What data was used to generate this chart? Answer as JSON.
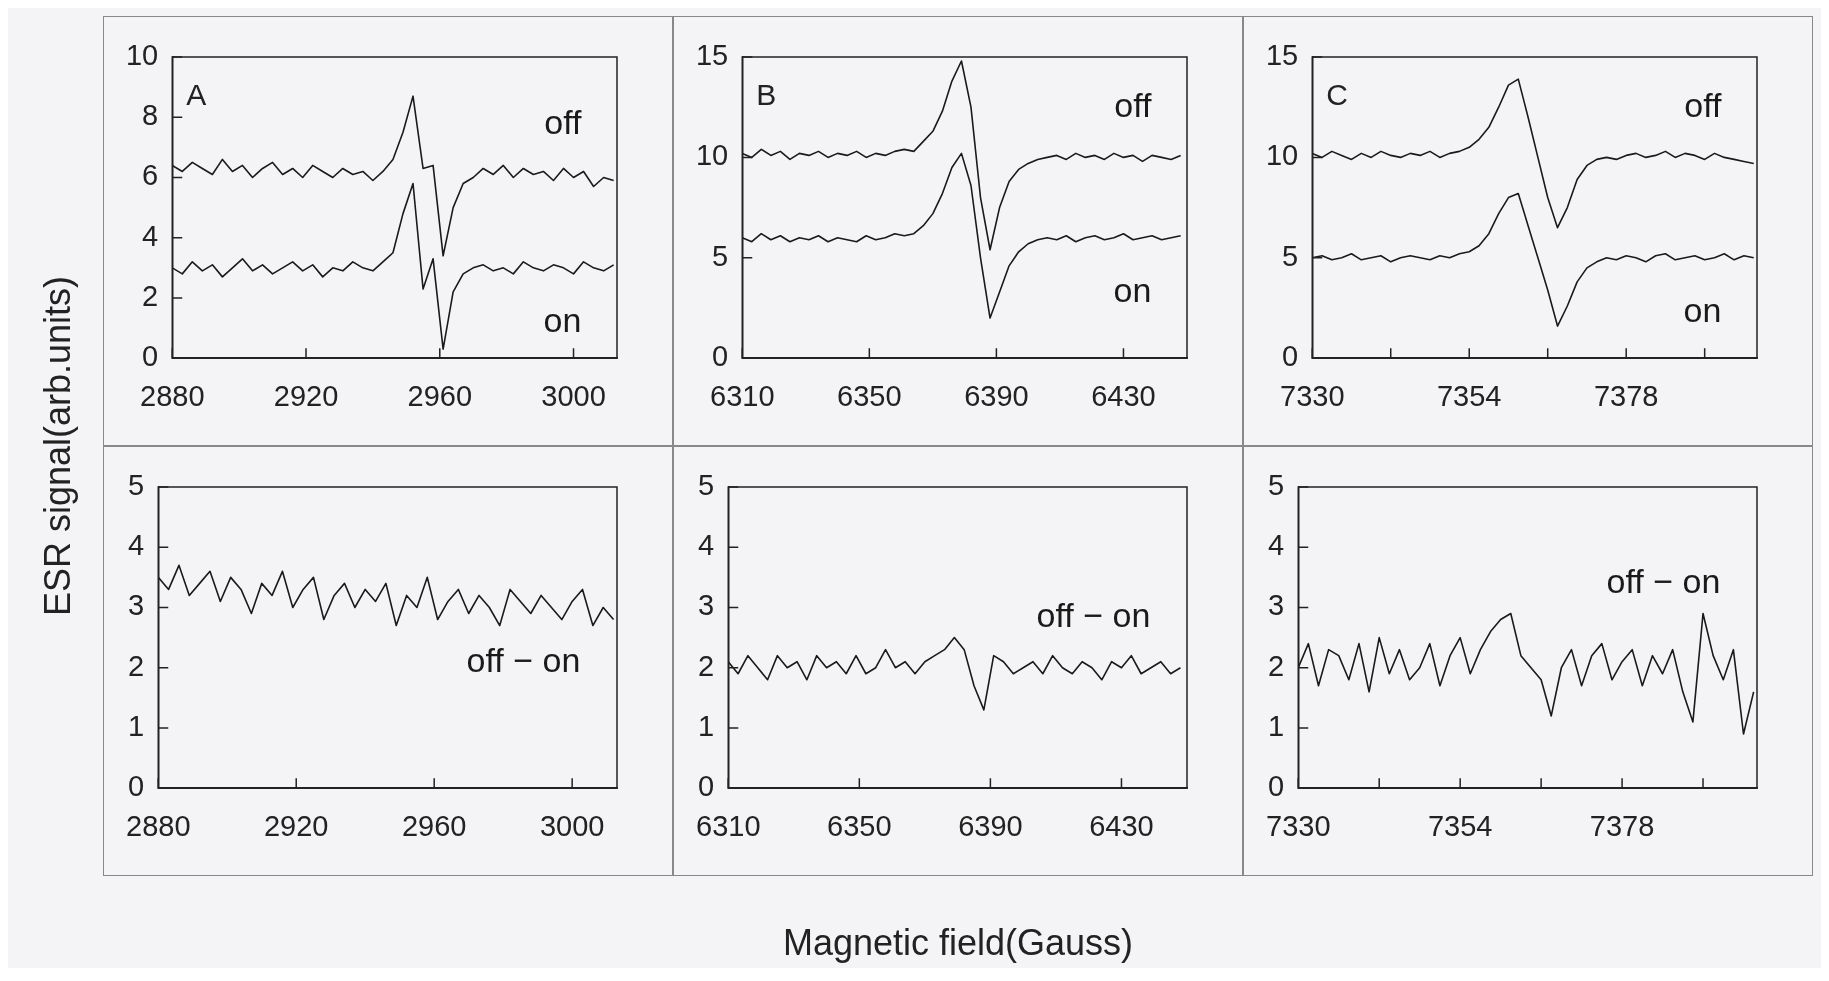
{
  "chart_data": [
    {
      "type": "line",
      "ylabel": "ESR signal(arb.units)",
      "annotations": [
        "A"
      ],
      "x": [
        2880,
        2883,
        2886,
        2889,
        2892,
        2895,
        2898,
        2901,
        2904,
        2907,
        2910,
        2913,
        2916,
        2919,
        2922,
        2925,
        2928,
        2931,
        2934,
        2937,
        2940,
        2943,
        2946,
        2949,
        2952,
        2955,
        2958,
        2961,
        2964,
        2967,
        2970,
        2973,
        2976,
        2979,
        2982,
        2985,
        2988,
        2991,
        2994,
        2997,
        3000,
        3003,
        3006,
        3009,
        3012
      ],
      "xlim": [
        2880,
        3013
      ],
      "xticks": [
        2880,
        2920,
        2960,
        3000
      ],
      "ylim": [
        0,
        10
      ],
      "yticks": [
        0,
        2,
        4,
        6,
        8,
        10
      ],
      "series": [
        {
          "name": "off",
          "color": "#1a1a1a",
          "values": [
            6.4,
            6.2,
            6.5,
            6.3,
            6.1,
            6.6,
            6.2,
            6.4,
            6.0,
            6.3,
            6.5,
            6.1,
            6.3,
            6.0,
            6.4,
            6.2,
            6.0,
            6.3,
            6.1,
            6.2,
            5.9,
            6.2,
            6.6,
            7.5,
            8.7,
            6.3,
            6.4,
            3.4,
            5.0,
            5.8,
            6.0,
            6.3,
            6.1,
            6.4,
            6.0,
            6.3,
            6.1,
            6.2,
            5.9,
            6.3,
            6.0,
            6.2,
            5.7,
            6.0,
            5.9
          ]
        },
        {
          "name": "on",
          "color": "#1a1a1a",
          "values": [
            3.0,
            2.8,
            3.2,
            2.9,
            3.1,
            2.7,
            3.0,
            3.3,
            2.9,
            3.1,
            2.8,
            3.0,
            3.2,
            2.9,
            3.1,
            2.7,
            3.0,
            2.9,
            3.2,
            3.0,
            2.9,
            3.2,
            3.5,
            4.8,
            5.8,
            2.3,
            3.3,
            0.3,
            2.2,
            2.8,
            3.0,
            3.1,
            2.9,
            3.0,
            2.8,
            3.2,
            3.0,
            2.9,
            3.1,
            3.0,
            2.8,
            3.2,
            3.0,
            2.9,
            3.1
          ]
        }
      ]
    },
    {
      "type": "line",
      "annotations": [
        "B"
      ],
      "x": [
        6310,
        6313,
        6316,
        6319,
        6322,
        6325,
        6328,
        6331,
        6334,
        6337,
        6340,
        6343,
        6346,
        6349,
        6352,
        6355,
        6358,
        6361,
        6364,
        6367,
        6370,
        6373,
        6376,
        6379,
        6382,
        6385,
        6388,
        6391,
        6394,
        6397,
        6400,
        6403,
        6406,
        6409,
        6412,
        6415,
        6418,
        6421,
        6424,
        6427,
        6430,
        6433,
        6436,
        6439,
        6442,
        6445,
        6448
      ],
      "xlim": [
        6310,
        6450
      ],
      "xticks": [
        6310,
        6350,
        6390,
        6430
      ],
      "ylim": [
        0,
        15
      ],
      "yticks": [
        0,
        5,
        10,
        15
      ],
      "series": [
        {
          "name": "off",
          "color": "#1a1a1a",
          "values": [
            10.2,
            10.0,
            10.4,
            10.1,
            10.3,
            9.9,
            10.2,
            10.1,
            10.3,
            10.0,
            10.2,
            10.1,
            10.3,
            10.0,
            10.2,
            10.1,
            10.3,
            10.4,
            10.3,
            10.8,
            11.3,
            12.3,
            13.8,
            14.8,
            12.5,
            8.0,
            5.4,
            7.5,
            8.8,
            9.4,
            9.7,
            9.9,
            10.0,
            10.1,
            9.9,
            10.2,
            10.0,
            10.1,
            9.9,
            10.2,
            10.0,
            10.1,
            9.8,
            10.1,
            10.0,
            9.9,
            10.1
          ]
        },
        {
          "name": "on",
          "color": "#1a1a1a",
          "values": [
            6.0,
            5.8,
            6.2,
            5.9,
            6.1,
            5.8,
            6.0,
            5.9,
            6.1,
            5.8,
            6.0,
            5.9,
            5.8,
            6.1,
            5.9,
            6.0,
            6.2,
            6.1,
            6.2,
            6.6,
            7.2,
            8.2,
            9.5,
            10.2,
            8.6,
            5.0,
            2.0,
            3.3,
            4.6,
            5.3,
            5.7,
            5.9,
            6.0,
            5.9,
            6.1,
            5.8,
            6.0,
            6.1,
            5.9,
            6.0,
            6.2,
            5.9,
            6.0,
            6.1,
            5.9,
            6.0,
            6.1
          ]
        }
      ]
    },
    {
      "type": "line",
      "annotations": [
        "C"
      ],
      "x": [
        7330,
        7331.5,
        7333,
        7334.5,
        7336,
        7337.5,
        7339,
        7340.5,
        7342,
        7343.5,
        7345,
        7346.5,
        7348,
        7349.5,
        7351,
        7352.5,
        7354,
        7355.5,
        7357,
        7358.5,
        7360,
        7361.5,
        7363,
        7364.5,
        7366,
        7367.5,
        7369,
        7370.5,
        7372,
        7373.5,
        7375,
        7376.5,
        7378,
        7379.5,
        7381,
        7382.5,
        7384,
        7385.5,
        7387,
        7388.5,
        7390,
        7391.5,
        7393,
        7394.5,
        7396,
        7397.5
      ],
      "xlim": [
        7330,
        7398
      ],
      "xticks": [
        7330,
        {
          "value": 7342,
          "label": null
        },
        7354,
        {
          "value": 7366,
          "label": null
        },
        7378,
        {
          "value": 7390,
          "label": null
        }
      ],
      "ylim": [
        0,
        15
      ],
      "yticks": [
        0,
        5,
        10,
        15
      ],
      "series": [
        {
          "name": "off",
          "color": "#1a1a1a",
          "values": [
            10.2,
            10.0,
            10.3,
            10.1,
            9.9,
            10.2,
            10.0,
            10.3,
            10.1,
            10.0,
            10.2,
            10.1,
            10.3,
            10.0,
            10.2,
            10.3,
            10.5,
            10.9,
            11.5,
            12.5,
            13.6,
            13.9,
            12.0,
            10.0,
            8.0,
            6.5,
            7.5,
            8.9,
            9.6,
            9.9,
            10.0,
            9.9,
            10.1,
            10.2,
            10.0,
            10.1,
            10.3,
            10.0,
            10.2,
            10.1,
            9.9,
            10.2,
            10.0,
            9.9,
            9.8,
            9.7
          ]
        },
        {
          "name": "on",
          "color": "#1a1a1a",
          "values": [
            5.0,
            5.1,
            4.9,
            5.0,
            5.2,
            4.9,
            5.0,
            5.1,
            4.8,
            5.0,
            5.1,
            5.0,
            4.9,
            5.1,
            5.0,
            5.2,
            5.3,
            5.6,
            6.2,
            7.2,
            8.0,
            8.2,
            6.6,
            5.0,
            3.4,
            1.6,
            2.6,
            3.8,
            4.5,
            4.8,
            5.0,
            4.9,
            5.1,
            5.0,
            4.8,
            5.1,
            5.2,
            4.9,
            5.0,
            5.1,
            4.9,
            5.0,
            5.2,
            4.9,
            5.1,
            5.0
          ]
        }
      ]
    },
    {
      "type": "line",
      "x": [
        2880,
        2883,
        2886,
        2889,
        2892,
        2895,
        2898,
        2901,
        2904,
        2907,
        2910,
        2913,
        2916,
        2919,
        2922,
        2925,
        2928,
        2931,
        2934,
        2937,
        2940,
        2943,
        2946,
        2949,
        2952,
        2955,
        2958,
        2961,
        2964,
        2967,
        2970,
        2973,
        2976,
        2979,
        2982,
        2985,
        2988,
        2991,
        2994,
        2997,
        3000,
        3003,
        3006,
        3009,
        3012
      ],
      "xlim": [
        2880,
        3013
      ],
      "xticks": [
        2880,
        2920,
        2960,
        3000
      ],
      "ylim": [
        0,
        5
      ],
      "yticks": [
        0,
        1,
        2,
        3,
        4,
        5
      ],
      "series": [
        {
          "name": "off − on",
          "color": "#1a1a1a",
          "values": [
            3.5,
            3.3,
            3.7,
            3.2,
            3.4,
            3.6,
            3.1,
            3.5,
            3.3,
            2.9,
            3.4,
            3.2,
            3.6,
            3.0,
            3.3,
            3.5,
            2.8,
            3.2,
            3.4,
            3.0,
            3.3,
            3.1,
            3.4,
            2.7,
            3.2,
            3.0,
            3.5,
            2.8,
            3.1,
            3.3,
            2.9,
            3.2,
            3.0,
            2.7,
            3.3,
            3.1,
            2.9,
            3.2,
            3.0,
            2.8,
            3.1,
            3.3,
            2.7,
            3.0,
            2.8
          ]
        }
      ]
    },
    {
      "type": "line",
      "xlabel": "Magnetic field(Gauss)",
      "x": [
        6310,
        6313,
        6316,
        6319,
        6322,
        6325,
        6328,
        6331,
        6334,
        6337,
        6340,
        6343,
        6346,
        6349,
        6352,
        6355,
        6358,
        6361,
        6364,
        6367,
        6370,
        6373,
        6376,
        6379,
        6382,
        6385,
        6388,
        6391,
        6394,
        6397,
        6400,
        6403,
        6406,
        6409,
        6412,
        6415,
        6418,
        6421,
        6424,
        6427,
        6430,
        6433,
        6436,
        6439,
        6442,
        6445,
        6448
      ],
      "xlim": [
        6310,
        6450
      ],
      "xticks": [
        6310,
        6350,
        6390,
        6430
      ],
      "ylim": [
        0,
        5
      ],
      "yticks": [
        0,
        1,
        2,
        3,
        4,
        5
      ],
      "series": [
        {
          "name": "off − on",
          "color": "#1a1a1a",
          "values": [
            2.1,
            1.9,
            2.2,
            2.0,
            1.8,
            2.2,
            2.0,
            2.1,
            1.8,
            2.2,
            2.0,
            2.1,
            1.9,
            2.2,
            1.9,
            2.0,
            2.3,
            2.0,
            2.1,
            1.9,
            2.1,
            2.2,
            2.3,
            2.5,
            2.3,
            1.7,
            1.3,
            2.2,
            2.1,
            1.9,
            2.0,
            2.1,
            1.9,
            2.2,
            2.0,
            1.9,
            2.1,
            2.0,
            1.8,
            2.1,
            2.0,
            2.2,
            1.9,
            2.0,
            2.1,
            1.9,
            2.0
          ]
        }
      ]
    },
    {
      "type": "line",
      "x": [
        7330,
        7331.5,
        7333,
        7334.5,
        7336,
        7337.5,
        7339,
        7340.5,
        7342,
        7343.5,
        7345,
        7346.5,
        7348,
        7349.5,
        7351,
        7352.5,
        7354,
        7355.5,
        7357,
        7358.5,
        7360,
        7361.5,
        7363,
        7364.5,
        7366,
        7367.5,
        7369,
        7370.5,
        7372,
        7373.5,
        7375,
        7376.5,
        7378,
        7379.5,
        7381,
        7382.5,
        7384,
        7385.5,
        7387,
        7388.5,
        7390,
        7391.5,
        7393,
        7394.5,
        7396,
        7397.5
      ],
      "xlim": [
        7330,
        7398
      ],
      "xticks": [
        7330,
        {
          "value": 7342,
          "label": null
        },
        7354,
        {
          "value": 7366,
          "label": null
        },
        7378,
        {
          "value": 7390,
          "label": null
        }
      ],
      "ylim": [
        0,
        5
      ],
      "yticks": [
        0,
        1,
        2,
        3,
        4,
        5
      ],
      "series": [
        {
          "name": "off − on",
          "color": "#1a1a1a",
          "values": [
            2.0,
            2.4,
            1.7,
            2.3,
            2.2,
            1.8,
            2.4,
            1.6,
            2.5,
            1.9,
            2.3,
            1.8,
            2.0,
            2.4,
            1.7,
            2.2,
            2.5,
            1.9,
            2.3,
            2.6,
            2.8,
            2.9,
            2.2,
            2.0,
            1.8,
            1.2,
            2.0,
            2.3,
            1.7,
            2.2,
            2.4,
            1.8,
            2.1,
            2.3,
            1.7,
            2.2,
            1.9,
            2.3,
            1.6,
            1.1,
            2.9,
            2.2,
            1.8,
            2.3,
            0.9,
            1.6
          ]
        }
      ]
    }
  ]
}
